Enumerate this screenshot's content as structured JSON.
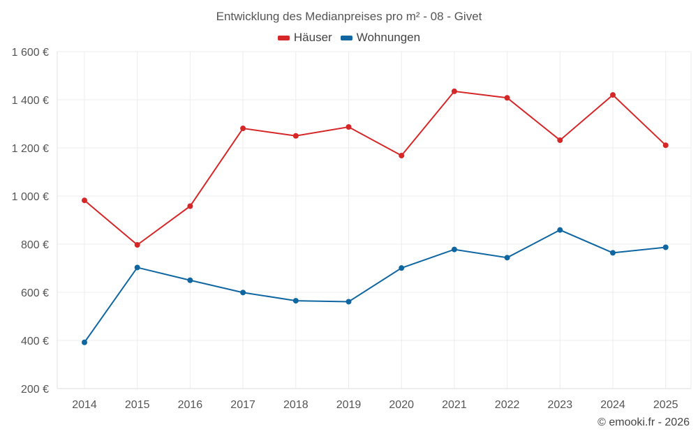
{
  "chart_data": {
    "type": "line",
    "title": "Entwicklung des Medianpreises pro m² - 08 - Givet",
    "categories": [
      "2014",
      "2015",
      "2016",
      "2017",
      "2018",
      "2019",
      "2020",
      "2021",
      "2022",
      "2023",
      "2024",
      "2025"
    ],
    "ylim": [
      200,
      1600
    ],
    "yticks": [
      200,
      400,
      600,
      800,
      1000,
      1200,
      1400,
      1600
    ],
    "ytick_labels": [
      "200 €",
      "400 €",
      "600 €",
      "800 €",
      "1 000 €",
      "1 200 €",
      "1 400 €",
      "1 600 €"
    ],
    "grid": true,
    "legend_position": "top-center",
    "series": [
      {
        "name": "Häuser",
        "color": "#d62728",
        "values": [
          982,
          797,
          958,
          1281,
          1250,
          1287,
          1168,
          1435,
          1408,
          1232,
          1420,
          1211
        ]
      },
      {
        "name": "Wohnungen",
        "color": "#0f66a0",
        "values": [
          392,
          703,
          650,
          599,
          565,
          561,
          701,
          778,
          744,
          859,
          764,
          787
        ]
      }
    ]
  },
  "credit": "© emooki.fr - 2026"
}
